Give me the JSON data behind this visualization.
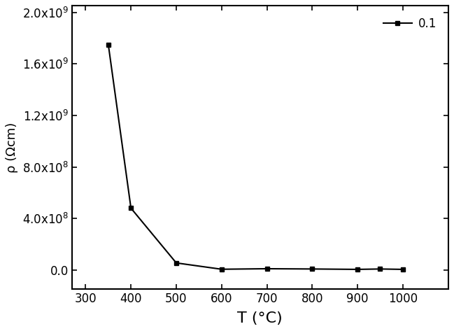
{
  "x": [
    350,
    400,
    500,
    600,
    700,
    800,
    900,
    950,
    1000
  ],
  "y": [
    1750000000.0,
    480000000.0,
    55000000.0,
    6000000.0,
    10000000.0,
    8000000.0,
    5000000.0,
    8000000.0,
    5000000.0
  ],
  "xlabel": "T (°C)",
  "ylabel": "ρ (Ωcm)",
  "xlim": [
    270,
    1100
  ],
  "ylim": [
    -150000000.0,
    2050000000.0
  ],
  "xticks": [
    300,
    400,
    500,
    600,
    700,
    800,
    900,
    1000
  ],
  "yticks": [
    0.0,
    400000000.0,
    800000000.0,
    1200000000.0,
    1600000000.0,
    2000000000.0
  ],
  "legend_label": "0.1",
  "line_color": "#000000",
  "marker": "s",
  "markersize": 5,
  "linewidth": 1.5,
  "background_color": "#ffffff",
  "xlabel_fontsize": 16,
  "ylabel_fontsize": 13,
  "tick_fontsize": 12,
  "legend_fontsize": 12
}
